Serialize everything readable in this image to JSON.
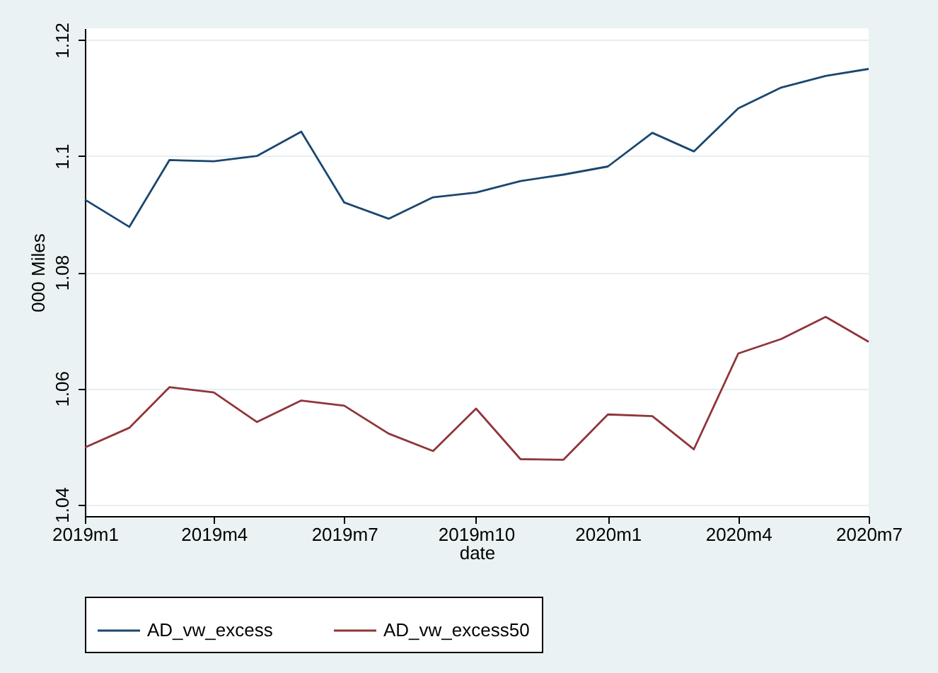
{
  "chart_data": {
    "type": "line",
    "xlabel": "date",
    "ylabel": "000 Miles",
    "x": [
      "2019-01",
      "2019-02",
      "2019-03",
      "2019-04",
      "2019-05",
      "2019-06",
      "2019-07",
      "2019-08",
      "2019-09",
      "2019-10",
      "2019-11",
      "2019-12",
      "2020-01",
      "2020-02",
      "2020-03",
      "2020-04",
      "2020-05",
      "2020-06",
      "2020-07"
    ],
    "series": [
      {
        "name": "AD_vw_excess",
        "color": "#1a476f",
        "values": [
          1.0925,
          1.0878,
          1.0993,
          1.0991,
          1.1,
          1.1042,
          1.092,
          1.0892,
          1.0929,
          1.0937,
          1.0957,
          1.0968,
          1.0982,
          1.104,
          1.1008,
          1.1082,
          1.1118,
          1.1138,
          1.115
        ]
      },
      {
        "name": "AD_vw_excess50",
        "color": "#90353b",
        "values": [
          1.0498,
          1.0532,
          1.0602,
          1.0593,
          1.0542,
          1.0579,
          1.057,
          1.0522,
          1.0492,
          1.0565,
          1.0478,
          1.0477,
          1.0555,
          1.0552,
          1.0495,
          1.066,
          1.0685,
          1.0723,
          1.068
        ]
      }
    ],
    "xlim": [
      "2019-01",
      "2020-07"
    ],
    "xticks": [
      {
        "value": "2019-01",
        "label": "2019m1"
      },
      {
        "value": "2019-04",
        "label": "2019m4"
      },
      {
        "value": "2019-07",
        "label": "2019m7"
      },
      {
        "value": "2019-10",
        "label": "2019m10"
      },
      {
        "value": "2020-01",
        "label": "2020m1"
      },
      {
        "value": "2020-04",
        "label": "2020m4"
      },
      {
        "value": "2020-07",
        "label": "2020m7"
      }
    ],
    "ylim": [
      1.038,
      1.122
    ],
    "yticks": [
      1.04,
      1.06,
      1.08,
      1.1,
      1.12
    ],
    "grid": "y",
    "legend": "bottom",
    "marker": "none",
    "line_style": "solid"
  }
}
